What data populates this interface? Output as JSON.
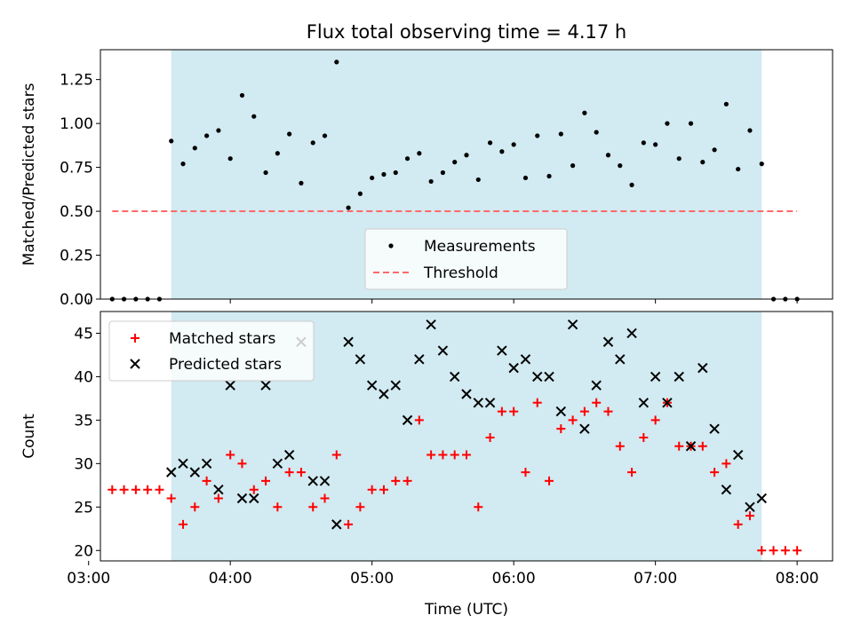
{
  "chart_data": [
    {
      "type": "scatter",
      "title": "Flux total observing time = 4.17 h",
      "ylabel": "Matched/Predicted stars",
      "ylim": [
        0,
        1.42
      ],
      "yticks": [
        0.0,
        0.25,
        0.5,
        0.75,
        1.0,
        1.25
      ],
      "ytick_labels": [
        "0.00",
        "0.25",
        "0.50",
        "0.75",
        "1.00",
        "1.25"
      ],
      "xlim": [
        "03:05",
        "08:15"
      ],
      "shaded_span": [
        "03:35",
        "07:45"
      ],
      "shade_color": "#add8e6",
      "legend": "lower-center",
      "series": [
        {
          "name": "Measurements",
          "marker": "dot",
          "color": "#000000",
          "points": [
            [
              "03:10",
              0.0
            ],
            [
              "03:15",
              0.0
            ],
            [
              "03:20",
              0.0
            ],
            [
              "03:25",
              0.0
            ],
            [
              "03:30",
              0.0
            ],
            [
              "03:35",
              0.9
            ],
            [
              "03:40",
              0.77
            ],
            [
              "03:45",
              0.86
            ],
            [
              "03:50",
              0.93
            ],
            [
              "03:55",
              0.96
            ],
            [
              "04:00",
              0.8
            ],
            [
              "04:05",
              1.16
            ],
            [
              "04:10",
              1.04
            ],
            [
              "04:15",
              0.72
            ],
            [
              "04:20",
              0.83
            ],
            [
              "04:25",
              0.94
            ],
            [
              "04:30",
              0.66
            ],
            [
              "04:35",
              0.89
            ],
            [
              "04:40",
              0.93
            ],
            [
              "04:45",
              1.35
            ],
            [
              "04:50",
              0.52
            ],
            [
              "04:55",
              0.6
            ],
            [
              "05:00",
              0.69
            ],
            [
              "05:05",
              0.71
            ],
            [
              "05:10",
              0.72
            ],
            [
              "05:15",
              0.8
            ],
            [
              "05:20",
              0.83
            ],
            [
              "05:25",
              0.67
            ],
            [
              "05:30",
              0.72
            ],
            [
              "05:35",
              0.78
            ],
            [
              "05:40",
              0.82
            ],
            [
              "05:45",
              0.68
            ],
            [
              "05:50",
              0.89
            ],
            [
              "05:55",
              0.84
            ],
            [
              "06:00",
              0.88
            ],
            [
              "06:05",
              0.69
            ],
            [
              "06:10",
              0.93
            ],
            [
              "06:15",
              0.7
            ],
            [
              "06:20",
              0.94
            ],
            [
              "06:25",
              0.76
            ],
            [
              "06:30",
              1.06
            ],
            [
              "06:35",
              0.95
            ],
            [
              "06:40",
              0.82
            ],
            [
              "06:45",
              0.76
            ],
            [
              "06:50",
              0.65
            ],
            [
              "06:55",
              0.89
            ],
            [
              "07:00",
              0.88
            ],
            [
              "07:05",
              1.0
            ],
            [
              "07:10",
              0.8
            ],
            [
              "07:15",
              1.0
            ],
            [
              "07:20",
              0.78
            ],
            [
              "07:25",
              0.85
            ],
            [
              "07:30",
              1.11
            ],
            [
              "07:35",
              0.74
            ],
            [
              "07:40",
              0.96
            ],
            [
              "07:45",
              0.77
            ],
            [
              "07:50",
              0.0
            ],
            [
              "07:55",
              0.0
            ],
            [
              "08:00",
              0.0
            ]
          ]
        },
        {
          "name": "Threshold",
          "marker": "dashed-line",
          "color": "#ff6a6a",
          "points": [
            [
              "03:10",
              0.5
            ],
            [
              "08:00",
              0.5
            ]
          ]
        }
      ]
    },
    {
      "type": "scatter",
      "xlabel": "Time (UTC)",
      "ylabel": "Count",
      "ylim": [
        18.8,
        47.5
      ],
      "yticks": [
        20,
        25,
        30,
        35,
        40,
        45
      ],
      "ytick_labels": [
        "20",
        "25",
        "30",
        "35",
        "40",
        "45"
      ],
      "xlim": [
        "03:05",
        "08:15"
      ],
      "xticks": [
        "03:00",
        "04:00",
        "05:00",
        "06:00",
        "07:00",
        "08:00"
      ],
      "shaded_span": [
        "03:35",
        "07:45"
      ],
      "shade_color": "#add8e6",
      "legend": "upper-left",
      "series": [
        {
          "name": "Matched stars",
          "marker": "plus",
          "color": "#ff0000",
          "points": [
            [
              "03:10",
              27
            ],
            [
              "03:15",
              27
            ],
            [
              "03:20",
              27
            ],
            [
              "03:25",
              27
            ],
            [
              "03:30",
              27
            ],
            [
              "03:35",
              26
            ],
            [
              "03:40",
              23
            ],
            [
              "03:45",
              25
            ],
            [
              "03:50",
              28
            ],
            [
              "03:55",
              26
            ],
            [
              "04:00",
              31
            ],
            [
              "04:05",
              30
            ],
            [
              "04:10",
              27
            ],
            [
              "04:15",
              28
            ],
            [
              "04:20",
              25
            ],
            [
              "04:25",
              29
            ],
            [
              "04:30",
              29
            ],
            [
              "04:35",
              25
            ],
            [
              "04:40",
              26
            ],
            [
              "04:45",
              31
            ],
            [
              "04:50",
              23
            ],
            [
              "04:55",
              25
            ],
            [
              "05:00",
              27
            ],
            [
              "05:05",
              27
            ],
            [
              "05:10",
              28
            ],
            [
              "05:15",
              28
            ],
            [
              "05:20",
              35
            ],
            [
              "05:25",
              31
            ],
            [
              "05:30",
              31
            ],
            [
              "05:35",
              31
            ],
            [
              "05:40",
              31
            ],
            [
              "05:45",
              25
            ],
            [
              "05:50",
              33
            ],
            [
              "05:55",
              36
            ],
            [
              "06:00",
              36
            ],
            [
              "06:05",
              29
            ],
            [
              "06:10",
              37
            ],
            [
              "06:15",
              28
            ],
            [
              "06:20",
              34
            ],
            [
              "06:25",
              35
            ],
            [
              "06:30",
              36
            ],
            [
              "06:35",
              37
            ],
            [
              "06:40",
              36
            ],
            [
              "06:45",
              32
            ],
            [
              "06:50",
              29
            ],
            [
              "06:55",
              33
            ],
            [
              "07:00",
              35
            ],
            [
              "07:05",
              37
            ],
            [
              "07:10",
              32
            ],
            [
              "07:15",
              32
            ],
            [
              "07:20",
              32
            ],
            [
              "07:25",
              29
            ],
            [
              "07:30",
              30
            ],
            [
              "07:35",
              23
            ],
            [
              "07:40",
              24
            ],
            [
              "07:45",
              20
            ],
            [
              "07:50",
              20
            ],
            [
              "07:55",
              20
            ],
            [
              "08:00",
              20
            ]
          ]
        },
        {
          "name": "Predicted stars",
          "marker": "x",
          "color": "#000000",
          "points": [
            [
              "03:35",
              29
            ],
            [
              "03:40",
              30
            ],
            [
              "03:45",
              29
            ],
            [
              "03:50",
              30
            ],
            [
              "03:55",
              27
            ],
            [
              "04:00",
              39
            ],
            [
              "04:05",
              26
            ],
            [
              "04:10",
              26
            ],
            [
              "04:15",
              39
            ],
            [
              "04:20",
              30
            ],
            [
              "04:25",
              31
            ],
            [
              "04:30",
              44
            ],
            [
              "04:35",
              28
            ],
            [
              "04:40",
              28
            ],
            [
              "04:45",
              23
            ],
            [
              "04:50",
              44
            ],
            [
              "04:55",
              42
            ],
            [
              "05:00",
              39
            ],
            [
              "05:05",
              38
            ],
            [
              "05:10",
              39
            ],
            [
              "05:15",
              35
            ],
            [
              "05:20",
              42
            ],
            [
              "05:25",
              46
            ],
            [
              "05:30",
              43
            ],
            [
              "05:35",
              40
            ],
            [
              "05:40",
              38
            ],
            [
              "05:45",
              37
            ],
            [
              "05:50",
              37
            ],
            [
              "05:55",
              43
            ],
            [
              "06:00",
              41
            ],
            [
              "06:05",
              42
            ],
            [
              "06:10",
              40
            ],
            [
              "06:15",
              40
            ],
            [
              "06:20",
              36
            ],
            [
              "06:25",
              46
            ],
            [
              "06:30",
              34
            ],
            [
              "06:35",
              39
            ],
            [
              "06:40",
              44
            ],
            [
              "06:45",
              42
            ],
            [
              "06:50",
              45
            ],
            [
              "06:55",
              37
            ],
            [
              "07:00",
              40
            ],
            [
              "07:05",
              37
            ],
            [
              "07:10",
              40
            ],
            [
              "07:15",
              32
            ],
            [
              "07:20",
              41
            ],
            [
              "07:25",
              34
            ],
            [
              "07:30",
              27
            ],
            [
              "07:35",
              31
            ],
            [
              "07:40",
              25
            ],
            [
              "07:45",
              26
            ]
          ]
        }
      ]
    }
  ]
}
